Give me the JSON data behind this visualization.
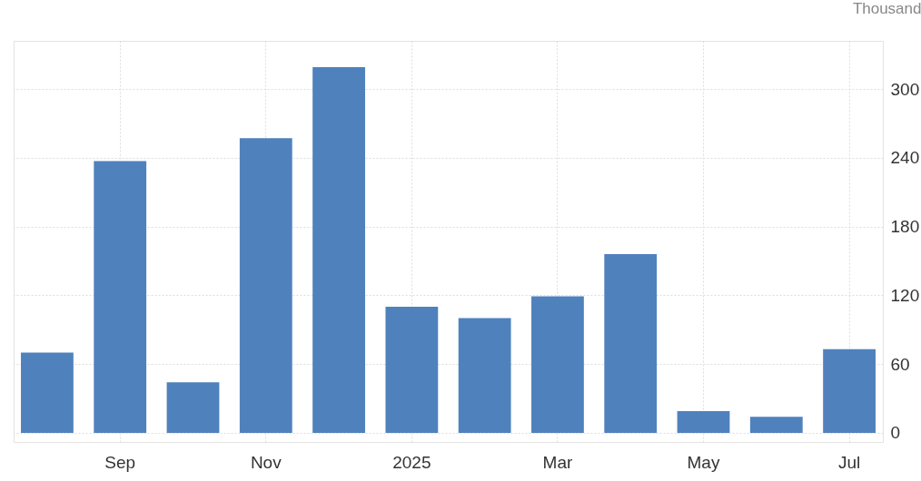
{
  "chart_data": {
    "type": "bar",
    "ylabel": "Thousand",
    "categories": [
      null,
      "Sep",
      null,
      "Nov",
      null,
      "2025",
      null,
      "Mar",
      null,
      "May",
      null,
      "Jul"
    ],
    "values": [
      70,
      237,
      44,
      257,
      319,
      110,
      100,
      119,
      156,
      19,
      14,
      73
    ],
    "color": "#4f81bd",
    "ylim": [
      -8,
      342
    ],
    "yticks": [
      0,
      60,
      120,
      180,
      240,
      300
    ],
    "grid": true
  }
}
